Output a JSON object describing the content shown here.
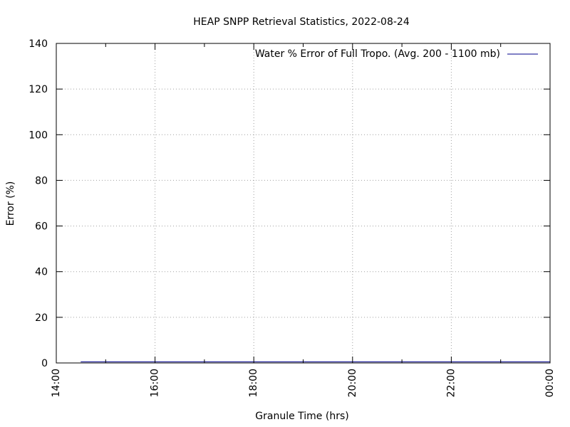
{
  "chart_data": {
    "type": "line",
    "title": "HEAP SNPP Retrieval Statistics, 2022-08-24",
    "xlabel": "Granule Time (hrs)",
    "ylabel": "Error (%)",
    "xlim": [
      14,
      24
    ],
    "ylim": [
      0,
      140
    ],
    "x_ticks": [
      {
        "value": 14,
        "label": "14:00"
      },
      {
        "value": 16,
        "label": "16:00"
      },
      {
        "value": 18,
        "label": "18:00"
      },
      {
        "value": 20,
        "label": "20:00"
      },
      {
        "value": 22,
        "label": "22:00"
      },
      {
        "value": 24,
        "label": "00:00"
      }
    ],
    "x_minor_ticks": [
      15,
      17,
      19,
      21,
      23
    ],
    "y_ticks": [
      0,
      20,
      40,
      60,
      80,
      100,
      120,
      140
    ],
    "grid": true,
    "legend_position": "top-right",
    "series": [
      {
        "name": "Water % Error of Full Tropo. (Avg. 200 - 1100 mb)",
        "color": "#00008b",
        "x": [
          14.5,
          15.0,
          16.0,
          17.0,
          18.0,
          19.0,
          20.0,
          21.0,
          22.0,
          23.0,
          24.0
        ],
        "y": [
          0.5,
          0.5,
          0.5,
          0.5,
          0.5,
          0.5,
          0.5,
          0.5,
          0.5,
          0.5,
          0.5
        ]
      }
    ]
  }
}
